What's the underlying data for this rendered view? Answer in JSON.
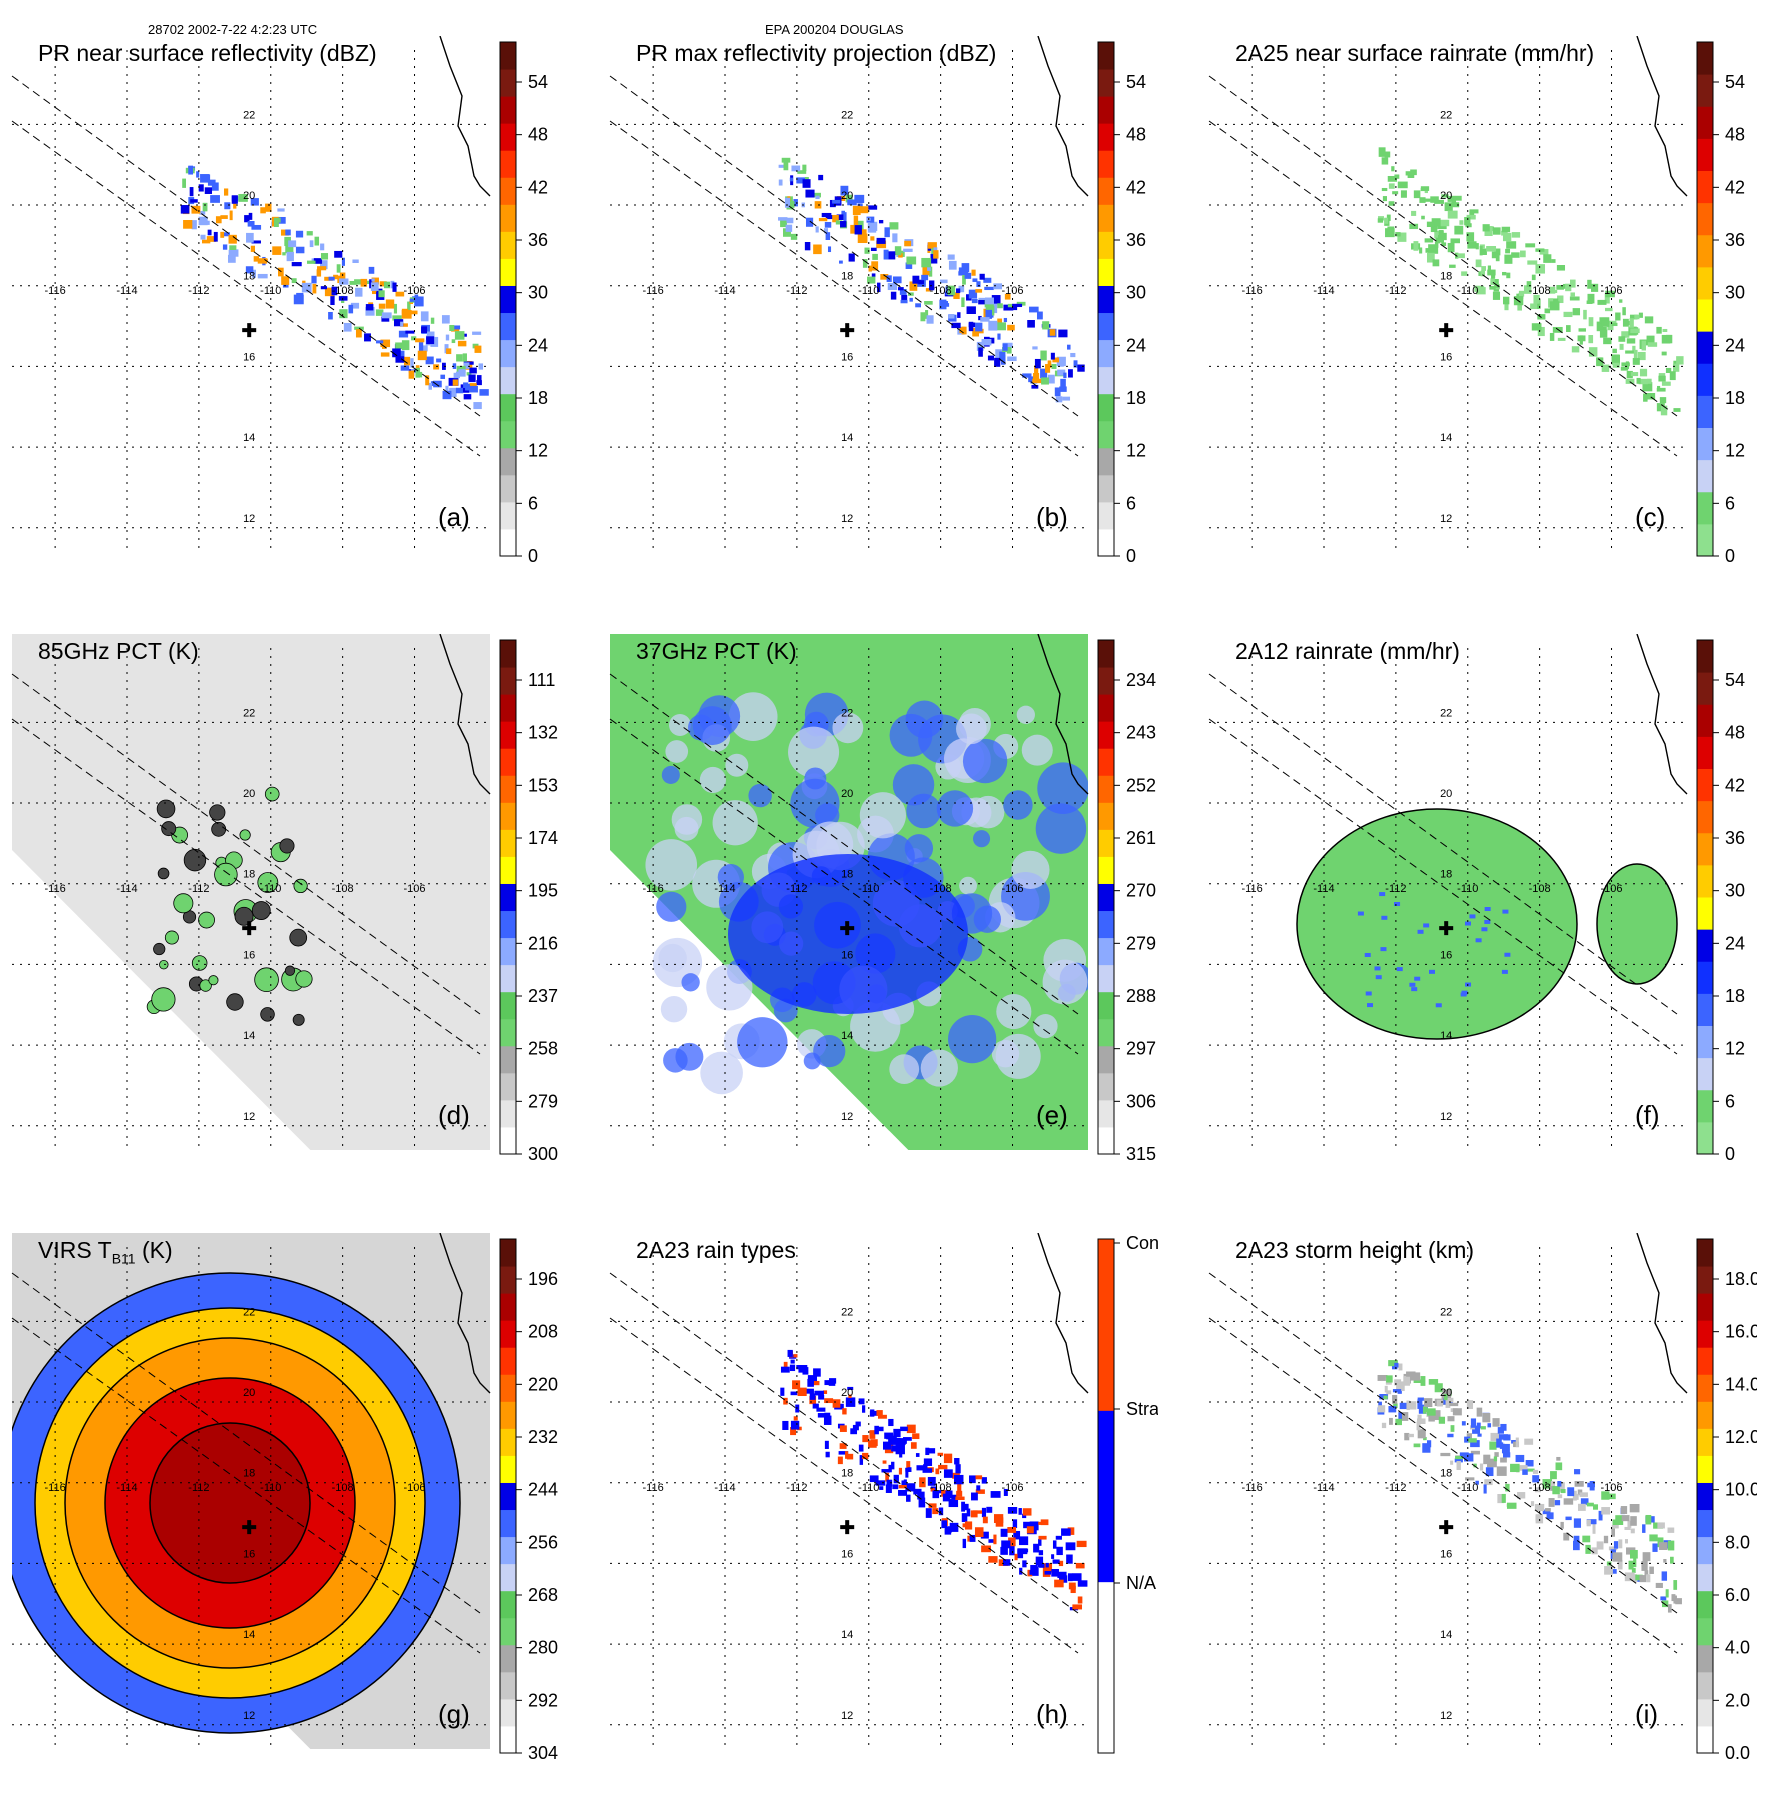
{
  "header": {
    "left": "28702 2002-7-22 4:2:23 UTC",
    "center": "EPA 200204 DOUGLAS"
  },
  "chart_data": [
    {
      "type": "heatmap",
      "id": "a",
      "title": "PR near surface reflectivity (dBZ)",
      "panel_label": "(a)",
      "lon_ticks": [
        -116,
        -114,
        -112,
        -110,
        -108,
        -106
      ],
      "lat_ticks": [
        22,
        20,
        18,
        16,
        14,
        12
      ],
      "colorbar": {
        "ticks": [
          "0",
          "6",
          "12",
          "18",
          "24",
          "30",
          "36",
          "42",
          "48",
          "54"
        ],
        "colors": [
          "#ffffff",
          "#e6e6e6",
          "#c8c8c8",
          "#a8a8a8",
          "#6fd36f",
          "#5cc85c",
          "#c8d2f5",
          "#8caaff",
          "#3c64ff",
          "#0000e6",
          "#ffff00",
          "#ffcc00",
          "#ff9900",
          "#ff6600",
          "#ff3300",
          "#dd0000",
          "#aa0000",
          "#7a1a10",
          "#5a1008"
        ]
      }
    },
    {
      "type": "heatmap",
      "id": "b",
      "title": "PR max reflectivity projection (dBZ)",
      "panel_label": "(b)",
      "lon_ticks": [
        -116,
        -114,
        -112,
        -110,
        -108,
        -106
      ],
      "lat_ticks": [
        22,
        20,
        18,
        16,
        14,
        12
      ],
      "colorbar": {
        "ticks": [
          "0",
          "6",
          "12",
          "18",
          "24",
          "30",
          "36",
          "42",
          "48",
          "54"
        ],
        "colors": [
          "#ffffff",
          "#e6e6e6",
          "#c8c8c8",
          "#a8a8a8",
          "#6fd36f",
          "#5cc85c",
          "#c8d2f5",
          "#8caaff",
          "#3c64ff",
          "#0000e6",
          "#ffff00",
          "#ffcc00",
          "#ff9900",
          "#ff6600",
          "#ff3300",
          "#dd0000",
          "#aa0000",
          "#7a1a10",
          "#5a1008"
        ]
      }
    },
    {
      "type": "heatmap",
      "id": "c",
      "title": "2A25 near surface rainrate (mm/hr)",
      "panel_label": "(c)",
      "lon_ticks": [
        -116,
        -114,
        -112,
        -110,
        -108,
        -106
      ],
      "lat_ticks": [
        22,
        20,
        18,
        16,
        14,
        12
      ],
      "colorbar": {
        "ticks": [
          "0",
          "6",
          "12",
          "18",
          "24",
          "30",
          "36",
          "42",
          "48",
          "54"
        ],
        "colors": [
          "#8ee08e",
          "#6fd36f",
          "#c8d2f5",
          "#8caaff",
          "#3c64ff",
          "#1030ff",
          "#0000e6",
          "#ffff00",
          "#ffcc00",
          "#ff9900",
          "#ff6600",
          "#ff3300",
          "#dd0000",
          "#aa0000",
          "#7a1a10",
          "#5a1008"
        ]
      }
    },
    {
      "type": "heatmap",
      "id": "d",
      "title": "85GHz PCT (K)",
      "panel_label": "(d)",
      "lon_ticks": [
        -116,
        -114,
        -112,
        -110,
        -108,
        -106
      ],
      "lat_ticks": [
        22,
        20,
        18,
        16,
        14,
        12
      ],
      "colorbar": {
        "ticks": [
          "300",
          "279",
          "258",
          "237",
          "216",
          "195",
          "174",
          "153",
          "132",
          "111"
        ],
        "colors": [
          "#ffffff",
          "#e6e6e6",
          "#c8c8c8",
          "#a8a8a8",
          "#6fd36f",
          "#5cc85c",
          "#c8d2f5",
          "#8caaff",
          "#3c64ff",
          "#0000e6",
          "#ffff00",
          "#ffcc00",
          "#ff9900",
          "#ff6600",
          "#ff3300",
          "#dd0000",
          "#aa0000",
          "#7a1a10",
          "#5a1008"
        ]
      }
    },
    {
      "type": "heatmap",
      "id": "e",
      "title": "37GHz PCT (K)",
      "panel_label": "(e)",
      "lon_ticks": [
        -116,
        -114,
        -112,
        -110,
        -108,
        -106
      ],
      "lat_ticks": [
        22,
        20,
        18,
        16,
        14,
        12
      ],
      "colorbar": {
        "ticks": [
          "315",
          "306",
          "297",
          "288",
          "279",
          "270",
          "261",
          "252",
          "243",
          "234"
        ],
        "colors": [
          "#ffffff",
          "#e6e6e6",
          "#c8c8c8",
          "#a8a8a8",
          "#6fd36f",
          "#5cc85c",
          "#c8d2f5",
          "#8caaff",
          "#3c64ff",
          "#0000e6",
          "#ffff00",
          "#ffcc00",
          "#ff9900",
          "#ff6600",
          "#ff3300",
          "#dd0000",
          "#aa0000",
          "#7a1a10",
          "#5a1008"
        ]
      }
    },
    {
      "type": "heatmap",
      "id": "f",
      "title": "2A12 rainrate (mm/hr)",
      "panel_label": "(f)",
      "lon_ticks": [
        -116,
        -114,
        -112,
        -110,
        -108,
        -106
      ],
      "lat_ticks": [
        22,
        20,
        18,
        16,
        14,
        12
      ],
      "colorbar": {
        "ticks": [
          "0",
          "6",
          "12",
          "18",
          "24",
          "30",
          "36",
          "42",
          "48",
          "54"
        ],
        "colors": [
          "#8ee08e",
          "#6fd36f",
          "#c8d2f5",
          "#8caaff",
          "#3c64ff",
          "#1030ff",
          "#0000e6",
          "#ffff00",
          "#ffcc00",
          "#ff9900",
          "#ff6600",
          "#ff3300",
          "#dd0000",
          "#aa0000",
          "#7a1a10",
          "#5a1008"
        ]
      }
    },
    {
      "type": "heatmap",
      "id": "g",
      "title": "VIRS T",
      "title_sub": "B11",
      "title_suffix": "(K)",
      "panel_label": "(g)",
      "lon_ticks": [
        -116,
        -114,
        -112,
        -110,
        -108,
        -106
      ],
      "lat_ticks": [
        22,
        20,
        18,
        16,
        14,
        12
      ],
      "colorbar": {
        "ticks": [
          "304",
          "292",
          "280",
          "268",
          "256",
          "244",
          "232",
          "220",
          "208",
          "196"
        ],
        "colors": [
          "#ffffff",
          "#e6e6e6",
          "#c8c8c8",
          "#a8a8a8",
          "#6fd36f",
          "#5cc85c",
          "#c8d2f5",
          "#8caaff",
          "#3c64ff",
          "#0000e6",
          "#ffff00",
          "#ffcc00",
          "#ff9900",
          "#ff6600",
          "#ff3300",
          "#dd0000",
          "#aa0000",
          "#7a1a10",
          "#5a1008"
        ]
      }
    },
    {
      "type": "heatmap",
      "id": "h",
      "title": "2A23 rain types",
      "panel_label": "(h)",
      "lon_ticks": [
        -116,
        -114,
        -112,
        -110,
        -108,
        -106
      ],
      "lat_ticks": [
        22,
        20,
        18,
        16,
        14,
        12
      ],
      "colorbar": {
        "categorical": true,
        "ticks": [
          "N/A",
          "Strat",
          "Conv"
        ],
        "colors": [
          "#ffffff",
          "#0000ff",
          "#ff4400"
        ]
      }
    },
    {
      "type": "heatmap",
      "id": "i",
      "title": "2A23 storm height (km)",
      "panel_label": "(i)",
      "lon_ticks": [
        -116,
        -114,
        -112,
        -110,
        -108,
        -106
      ],
      "lat_ticks": [
        22,
        20,
        18,
        16,
        14,
        12
      ],
      "colorbar": {
        "ticks": [
          "0.0",
          "2.0",
          "4.0",
          "6.0",
          "8.0",
          "10.0",
          "12.0",
          "14.0",
          "16.0",
          "18.0"
        ],
        "colors": [
          "#ffffff",
          "#e6e6e6",
          "#c8c8c8",
          "#a8a8a8",
          "#6fd36f",
          "#5cc85c",
          "#c8d2f5",
          "#8caaff",
          "#3c64ff",
          "#0000e6",
          "#ffff00",
          "#ffcc00",
          "#ff9900",
          "#ff6600",
          "#ff3300",
          "#dd0000",
          "#aa0000",
          "#7a1a10",
          "#5a1008"
        ]
      }
    }
  ]
}
